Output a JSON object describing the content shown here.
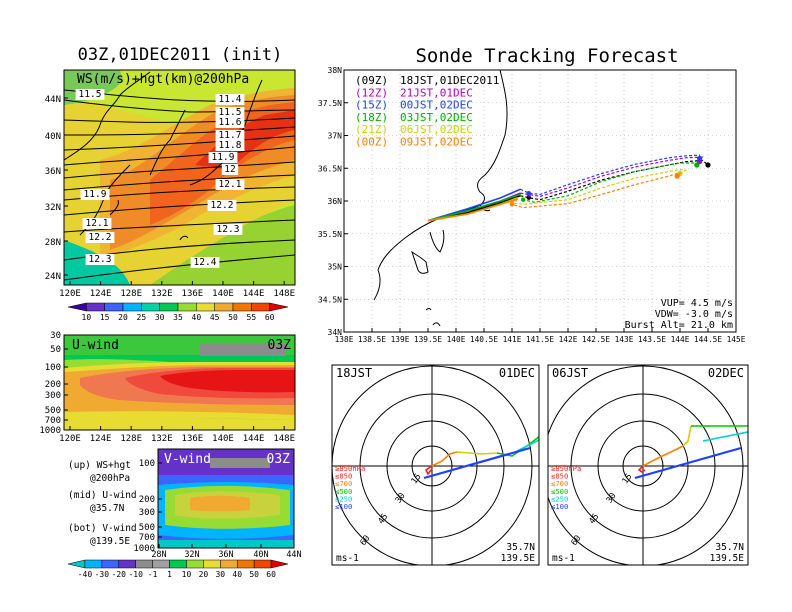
{
  "left_panel": {
    "title": "03Z,01DEC2011 (init)",
    "map_label": "WS(m/s)+hgt(km)@200hPa",
    "map_lat_ticks": [
      "44N",
      "40N",
      "36N",
      "32N",
      "28N",
      "24N"
    ],
    "map_lon_ticks": [
      "120E",
      "124E",
      "128E",
      "132E",
      "136E",
      "140E",
      "144E",
      "148E"
    ],
    "map_contour_labels": [
      "11.5",
      "11.4",
      "11.5",
      "11.6",
      "11.7",
      "11.8",
      "11.9",
      "12",
      "12.1",
      "11.9",
      "12.2",
      "12.1",
      "12.2",
      "12.3",
      "12.3",
      "12.4"
    ],
    "ws_colorbar_labels": [
      "10",
      "15",
      "20",
      "25",
      "30",
      "35",
      "40",
      "45",
      "50",
      "55",
      "60"
    ],
    "uwind_label": "U-wind",
    "uwind_time": "03Z",
    "uwind_pressure_ticks": [
      "30",
      "50",
      "100",
      "200",
      "300",
      "500",
      "700",
      "1000"
    ],
    "uwind_lon_ticks": [
      "120E",
      "124E",
      "128E",
      "132E",
      "136E",
      "140E",
      "144E",
      "148E"
    ],
    "vwind_label": "V-wind",
    "vwind_time": "03Z",
    "vwind_pressure_ticks": [
      "100",
      "200",
      "300",
      "500",
      "700",
      "1000"
    ],
    "vwind_lat_ticks": [
      "28N",
      "32N",
      "36N",
      "40N",
      "44N"
    ],
    "legend_lines": [
      "(up) WS+hgt",
      "@200hPa",
      "(mid) U-wind",
      "@35.7N",
      "(bot) V-wind",
      "@139.5E"
    ],
    "wind_colorbar_labels": [
      "-40",
      "-30",
      "-20",
      "-10",
      "-1",
      "1",
      "10",
      "20",
      "30",
      "40",
      "50",
      "60"
    ]
  },
  "right_panel": {
    "title": "Sonde Tracking Forecast",
    "lat_ticks": [
      "38N",
      "37.5N",
      "37N",
      "36.5N",
      "36N",
      "35.5N",
      "35N",
      "34.5N",
      "34N"
    ],
    "lon_ticks": [
      "138E",
      "138.5E",
      "139E",
      "139.5E",
      "140E",
      "140.5E",
      "141E",
      "141.5E",
      "142E",
      "142.5E",
      "143E",
      "143.5E",
      "144E",
      "144.5E",
      "145E"
    ],
    "legend": [
      {
        "run": "(09Z)",
        "time": "18JST,01DEC2011",
        "color": "#000000"
      },
      {
        "run": "(12Z)",
        "time": "21JST,01DEC",
        "color": "#b000c0"
      },
      {
        "run": "(15Z)",
        "time": "00JST,02DEC",
        "color": "#2040ff"
      },
      {
        "run": "(18Z)",
        "time": "03JST,02DEC",
        "color": "#00b000"
      },
      {
        "run": "(21Z)",
        "time": "06JST,02DEC",
        "color": "#d0d000"
      },
      {
        "run": "(00Z)",
        "time": "09JST,02DEC",
        "color": "#ff8000"
      }
    ],
    "params": [
      "VUP= 4.5 m/s",
      "VDW= -3.0 m/s",
      "Burst Alt= 21.0 km"
    ]
  },
  "hodographs": [
    {
      "time": "18JST",
      "date": "01DEC",
      "units": "ms-1",
      "loc1": "35.7N",
      "loc2": "139.5E",
      "ring_labels": [
        "15",
        "30",
        "45",
        "60"
      ],
      "levels": [
        "≥850hPa",
        "≤850",
        "≤700",
        "≤500",
        "≤250",
        "≤100"
      ]
    },
    {
      "time": "06JST",
      "date": "02DEC",
      "units": "ms-1",
      "loc1": "35.7N",
      "loc2": "139.5E",
      "ring_labels": [
        "15",
        "30",
        "45",
        "60"
      ],
      "levels": [
        "≥850hPa",
        "≤850",
        "≤700",
        "≤500",
        "≤250",
        "≤100"
      ]
    }
  ],
  "chart_data": [
    {
      "type": "heatmap",
      "title": "03Z,01DEC2011 (init)",
      "label": "WS(m/s)+hgt(km)@200hPa",
      "xlim": [
        120,
        150
      ],
      "ylim": [
        22,
        47
      ],
      "contour_labels_km": [
        11.5,
        11.4,
        11.5,
        11.6,
        11.7,
        11.8,
        11.9,
        12,
        12.1,
        11.9,
        12.2,
        12.1,
        12.2,
        12.3,
        12.3,
        12.4
      ]
    },
    {
      "type": "heatmap",
      "title": "U-wind",
      "label": "03Z",
      "xlim": [
        120,
        150
      ],
      "ylim": [
        1000,
        30
      ]
    },
    {
      "type": "heatmap",
      "title": "V-wind",
      "label": "03Z",
      "xlim": [
        27,
        44
      ],
      "ylim": [
        1000,
        100
      ]
    },
    {
      "type": "line",
      "title": "Sonde Tracking Forecast",
      "xlim": [
        138,
        145
      ],
      "ylim": [
        34,
        38
      ],
      "series": [
        {
          "name": "(09Z)",
          "color": "#000000",
          "x": [
            139.5,
            140.2,
            140.8,
            141.15,
            141.3,
            141.5,
            142.0,
            142.6,
            143.2,
            143.8,
            144.1,
            144.4,
            144.5
          ],
          "y": [
            35.7,
            35.82,
            35.98,
            36.08,
            36.05,
            36.02,
            36.15,
            36.32,
            36.45,
            36.55,
            36.6,
            36.62,
            36.55
          ]
        },
        {
          "name": "(12Z)",
          "color": "#b000c0",
          "x": [
            139.5,
            140.2,
            140.8,
            141.15,
            141.3,
            141.5,
            142.0,
            142.6,
            143.2,
            143.8,
            144.1,
            144.4,
            144.35
          ],
          "y": [
            35.7,
            35.85,
            36.0,
            36.12,
            36.1,
            36.07,
            36.2,
            36.38,
            36.52,
            36.62,
            36.66,
            36.67,
            36.6
          ]
        },
        {
          "name": "(15Z)",
          "color": "#2040ff",
          "x": [
            139.5,
            140.2,
            140.8,
            141.15,
            141.3,
            141.5,
            142.0,
            142.6,
            143.2,
            143.8,
            144.1,
            144.35,
            144.35
          ],
          "y": [
            35.7,
            35.88,
            36.05,
            36.18,
            36.12,
            36.1,
            36.25,
            36.42,
            36.56,
            36.66,
            36.69,
            36.7,
            36.65
          ]
        },
        {
          "name": "(18Z)",
          "color": "#00b000",
          "x": [
            139.5,
            140.2,
            140.8,
            141.15,
            141.2,
            141.4,
            142.0,
            142.6,
            143.2,
            143.8,
            144.0,
            144.25,
            144.3
          ],
          "y": [
            35.7,
            35.85,
            36.0,
            36.1,
            36.02,
            35.98,
            36.08,
            36.3,
            36.45,
            36.55,
            36.58,
            36.58,
            36.55
          ]
        },
        {
          "name": "(21Z)",
          "color": "#d0d000",
          "x": [
            139.5,
            140.2,
            140.8,
            141.1,
            141.0,
            141.2,
            142.0,
            142.6,
            143.2,
            143.8,
            144.0,
            144.1,
            144.0
          ],
          "y": [
            35.7,
            35.8,
            35.95,
            36.05,
            35.97,
            35.95,
            36.02,
            36.2,
            36.35,
            36.45,
            36.48,
            36.47,
            36.42
          ]
        },
        {
          "name": "(00Z)",
          "color": "#ff8000",
          "x": [
            139.5,
            140.2,
            140.8,
            141.1,
            141.0,
            141.2,
            142.0,
            142.6,
            143.2,
            143.8,
            143.95,
            144.0,
            143.95
          ],
          "y": [
            35.7,
            35.8,
            35.95,
            36.03,
            35.95,
            35.9,
            35.96,
            36.1,
            36.25,
            36.38,
            36.42,
            36.42,
            36.38
          ]
        }
      ]
    }
  ],
  "colors": {
    "ws_scale": [
      "#3c00a0",
      "#6432c8",
      "#3c64ff",
      "#00b4ff",
      "#00d2aa",
      "#00c850",
      "#96dc32",
      "#e6dc32",
      "#f0aa32",
      "#f07800",
      "#f04600",
      "#e00000"
    ]
  }
}
